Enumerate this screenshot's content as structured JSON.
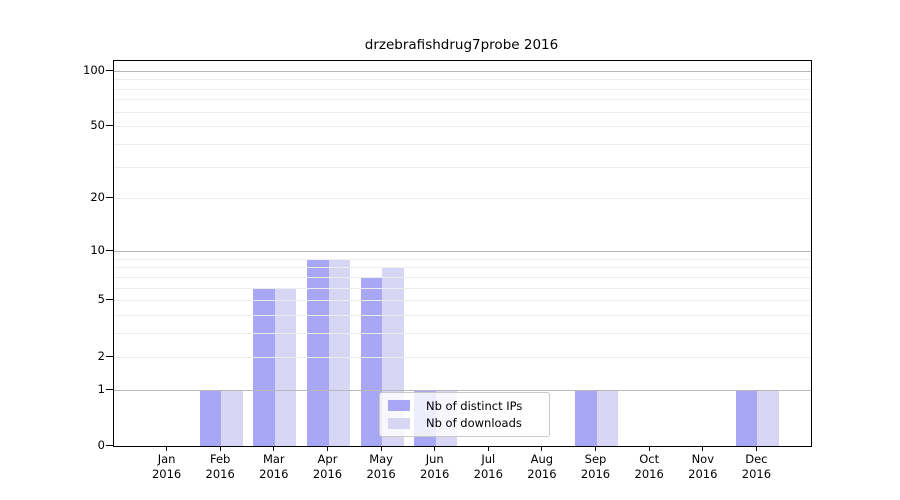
{
  "chart_data": {
    "type": "bar",
    "title": "drzebrafishdrug7probe 2016",
    "categories": [
      "Jan",
      "Feb",
      "Mar",
      "Apr",
      "May",
      "Jun",
      "Jul",
      "Aug",
      "Sep",
      "Oct",
      "Nov",
      "Dec"
    ],
    "year_label": "2016",
    "series": [
      {
        "name": "Nb of distinct IPs",
        "color": "#a7a7f5",
        "values": [
          0,
          1,
          6,
          9,
          7,
          1,
          0,
          0,
          1,
          0,
          0,
          1
        ]
      },
      {
        "name": "Nb of downloads",
        "color": "#d7d7f5",
        "values": [
          0,
          1,
          6,
          9,
          8,
          1,
          0,
          0,
          1,
          0,
          0,
          1
        ]
      }
    ],
    "yscale": "log1p",
    "ylim": [
      0,
      112
    ],
    "ytick_labels": [
      0,
      1,
      2,
      5,
      10,
      20,
      50,
      100
    ],
    "major_gridlines": [
      1,
      10,
      100
    ],
    "minor_gridlines": [
      2,
      3,
      4,
      5,
      6,
      7,
      8,
      9,
      20,
      30,
      40,
      50,
      60,
      70,
      80,
      90
    ],
    "grid": "horizontal",
    "legend_position": "lower-center"
  }
}
